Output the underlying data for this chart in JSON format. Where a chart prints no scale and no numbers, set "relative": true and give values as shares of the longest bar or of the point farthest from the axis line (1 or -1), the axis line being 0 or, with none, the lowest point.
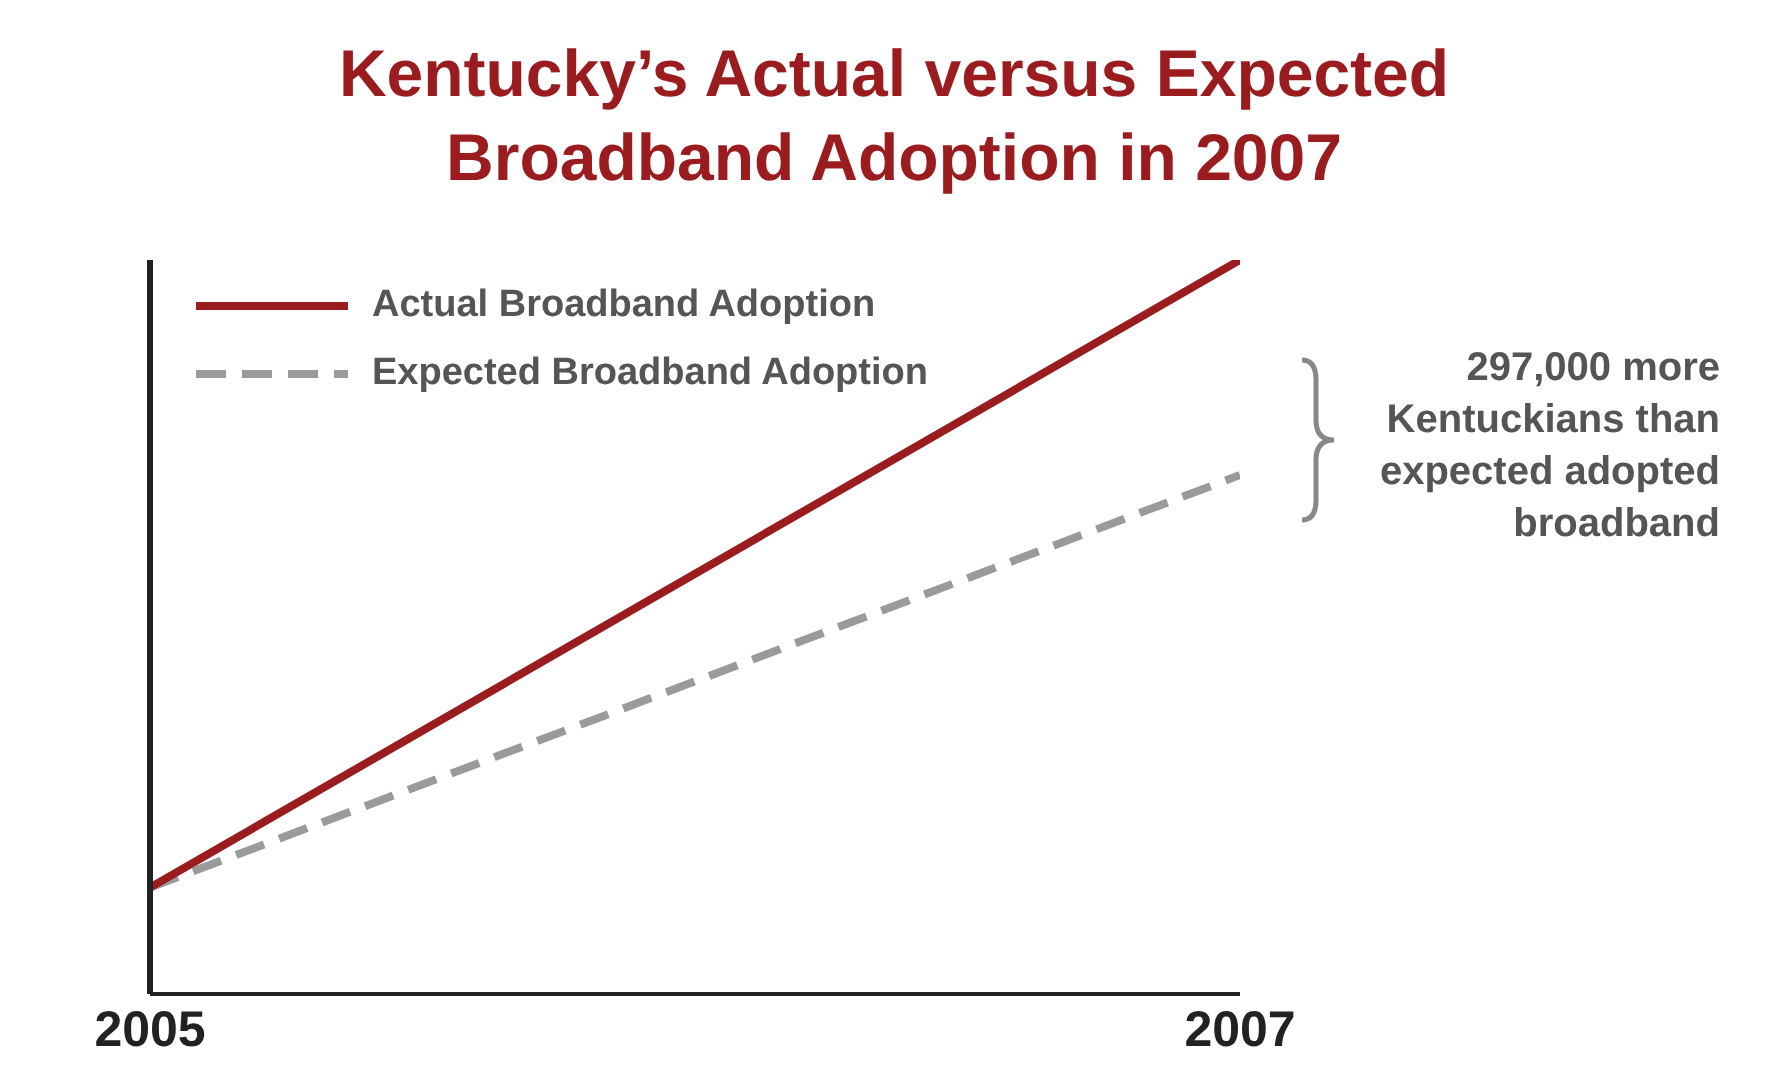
{
  "chart_data": {
    "type": "line",
    "title": "Kentucky’s Actual versus Expected Broadband Adoption in 2007",
    "x": [
      2005,
      2007
    ],
    "xlim": [
      2005,
      2007
    ],
    "xticks": [
      2005,
      2007
    ],
    "relative": true,
    "legend": "top left",
    "series": [
      {
        "name": "Actual Broadband Adoption",
        "color": "#9b1c1f",
        "line_style": "solid",
        "values": [
          0.145,
          1
        ]
      },
      {
        "name": "Expected Broadband Adoption",
        "color": "#9a9a9a",
        "line_style": "dashed",
        "values": [
          0.145,
          0.707
        ]
      }
    ],
    "annotations": [
      "297,000 more Kentuckians than expected adopted broadband"
    ]
  }
}
